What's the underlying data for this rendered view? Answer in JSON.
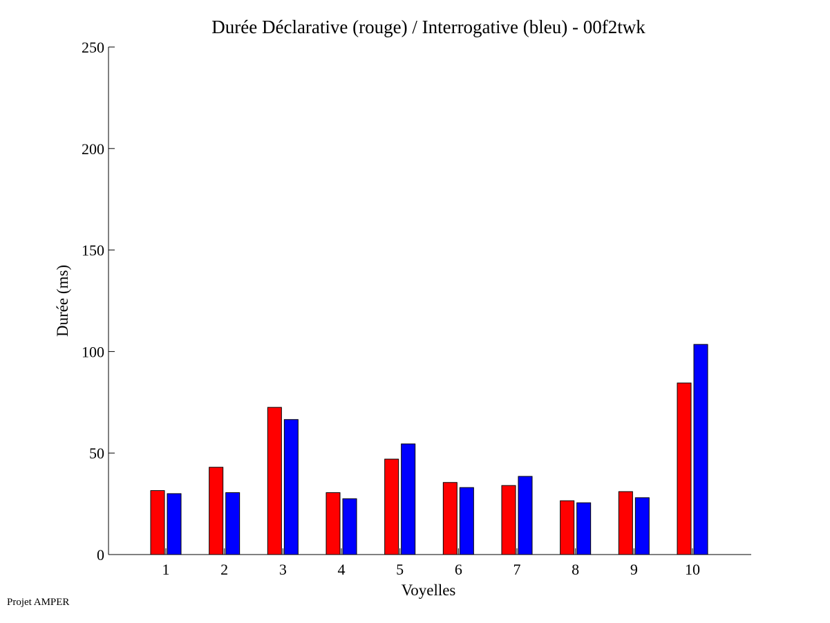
{
  "footer": "Projet AMPER",
  "chart_data": {
    "type": "bar",
    "title": "Durée Déclarative (rouge) / Interrogative (bleu) - 00f2twk",
    "xlabel": "Voyelles",
    "ylabel": "Durée (ms)",
    "ylim": [
      0,
      250
    ],
    "yticks": [
      "0",
      "50",
      "100",
      "150",
      "200",
      "250"
    ],
    "categories": [
      "1",
      "2",
      "3",
      "4",
      "5",
      "6",
      "7",
      "8",
      "9",
      "10"
    ],
    "series": [
      {
        "color": "#ff0000",
        "values": [
          31.5,
          43,
          72.5,
          30.5,
          47,
          35.5,
          34,
          26.5,
          31,
          84.5
        ]
      },
      {
        "color": "#0000ff",
        "values": [
          30,
          30.5,
          66.5,
          27.5,
          54.5,
          33,
          38.5,
          25.5,
          28,
          103.5
        ]
      }
    ],
    "grid": false,
    "legend": "none"
  }
}
